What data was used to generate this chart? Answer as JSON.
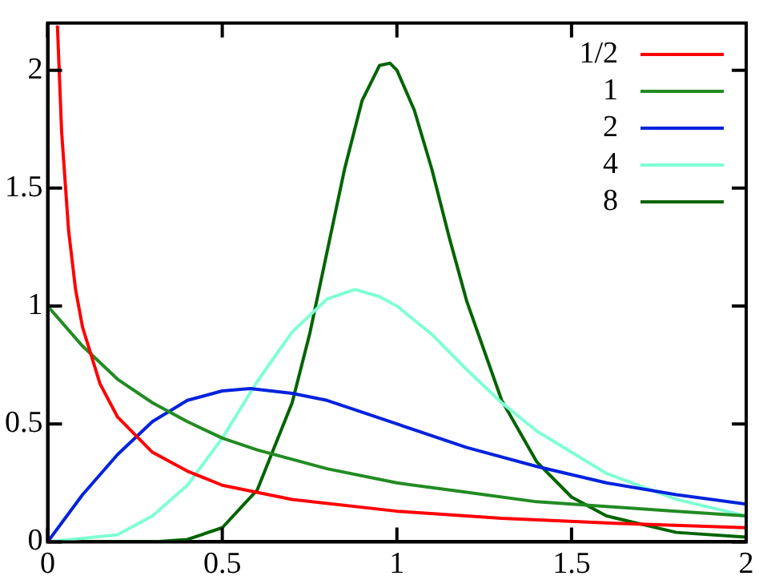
{
  "chart_data": {
    "type": "line",
    "xlim": [
      0,
      2
    ],
    "ylim": [
      0,
      2.2
    ],
    "xticks": [
      0,
      0.5,
      1,
      1.5,
      2
    ],
    "yticks": [
      0,
      0.5,
      1,
      1.5,
      2
    ],
    "grid": false,
    "legend": "top right",
    "marker": "none",
    "line_style": "solid",
    "series": [
      {
        "name": "1/2",
        "color": "#ff0000",
        "x": [
          0.028,
          0.04,
          0.06,
          0.08,
          0.1,
          0.15,
          0.2,
          0.3,
          0.4,
          0.5,
          0.7,
          1.0,
          1.3,
          1.6,
          2.0
        ],
        "values": [
          2.19,
          1.74,
          1.32,
          1.07,
          0.91,
          0.67,
          0.53,
          0.38,
          0.3,
          0.24,
          0.18,
          0.13,
          0.1,
          0.08,
          0.06
        ]
      },
      {
        "name": "1",
        "color": "#228b22",
        "x": [
          0,
          0.1,
          0.2,
          0.3,
          0.4,
          0.5,
          0.6,
          0.8,
          1.0,
          1.2,
          1.4,
          1.6,
          1.8,
          2.0
        ],
        "values": [
          1,
          0.83,
          0.69,
          0.59,
          0.51,
          0.44,
          0.39,
          0.31,
          0.25,
          0.21,
          0.17,
          0.15,
          0.13,
          0.11
        ]
      },
      {
        "name": "2",
        "color": "#0022dd",
        "x": [
          0,
          0.1,
          0.2,
          0.3,
          0.4,
          0.5,
          0.58,
          0.7,
          0.8,
          1.0,
          1.2,
          1.4,
          1.6,
          1.8,
          2.0
        ],
        "values": [
          0,
          0.2,
          0.37,
          0.51,
          0.6,
          0.64,
          0.65,
          0.63,
          0.6,
          0.5,
          0.4,
          0.32,
          0.25,
          0.2,
          0.16
        ]
      },
      {
        "name": "4",
        "color": "#7fffd4",
        "x": [
          0,
          0.2,
          0.3,
          0.4,
          0.5,
          0.6,
          0.7,
          0.8,
          0.88,
          0.95,
          1.0,
          1.1,
          1.2,
          1.3,
          1.4,
          1.6,
          1.8,
          2.0
        ],
        "values": [
          0,
          0.03,
          0.11,
          0.24,
          0.44,
          0.68,
          0.89,
          1.03,
          1.07,
          1.04,
          1.0,
          0.88,
          0.73,
          0.59,
          0.47,
          0.29,
          0.18,
          0.11
        ]
      },
      {
        "name": "8",
        "color": "#006400",
        "x": [
          0,
          0.3,
          0.4,
          0.5,
          0.6,
          0.7,
          0.75,
          0.8,
          0.85,
          0.9,
          0.95,
          0.98,
          1.0,
          1.05,
          1.1,
          1.15,
          1.2,
          1.3,
          1.4,
          1.5,
          1.6,
          1.8,
          2.0
        ],
        "values": [
          0,
          0,
          0.01,
          0.06,
          0.22,
          0.59,
          0.88,
          1.23,
          1.58,
          1.87,
          2.02,
          2.03,
          2.0,
          1.83,
          1.58,
          1.29,
          1.02,
          0.6,
          0.34,
          0.19,
          0.11,
          0.04,
          0.02
        ]
      }
    ]
  }
}
